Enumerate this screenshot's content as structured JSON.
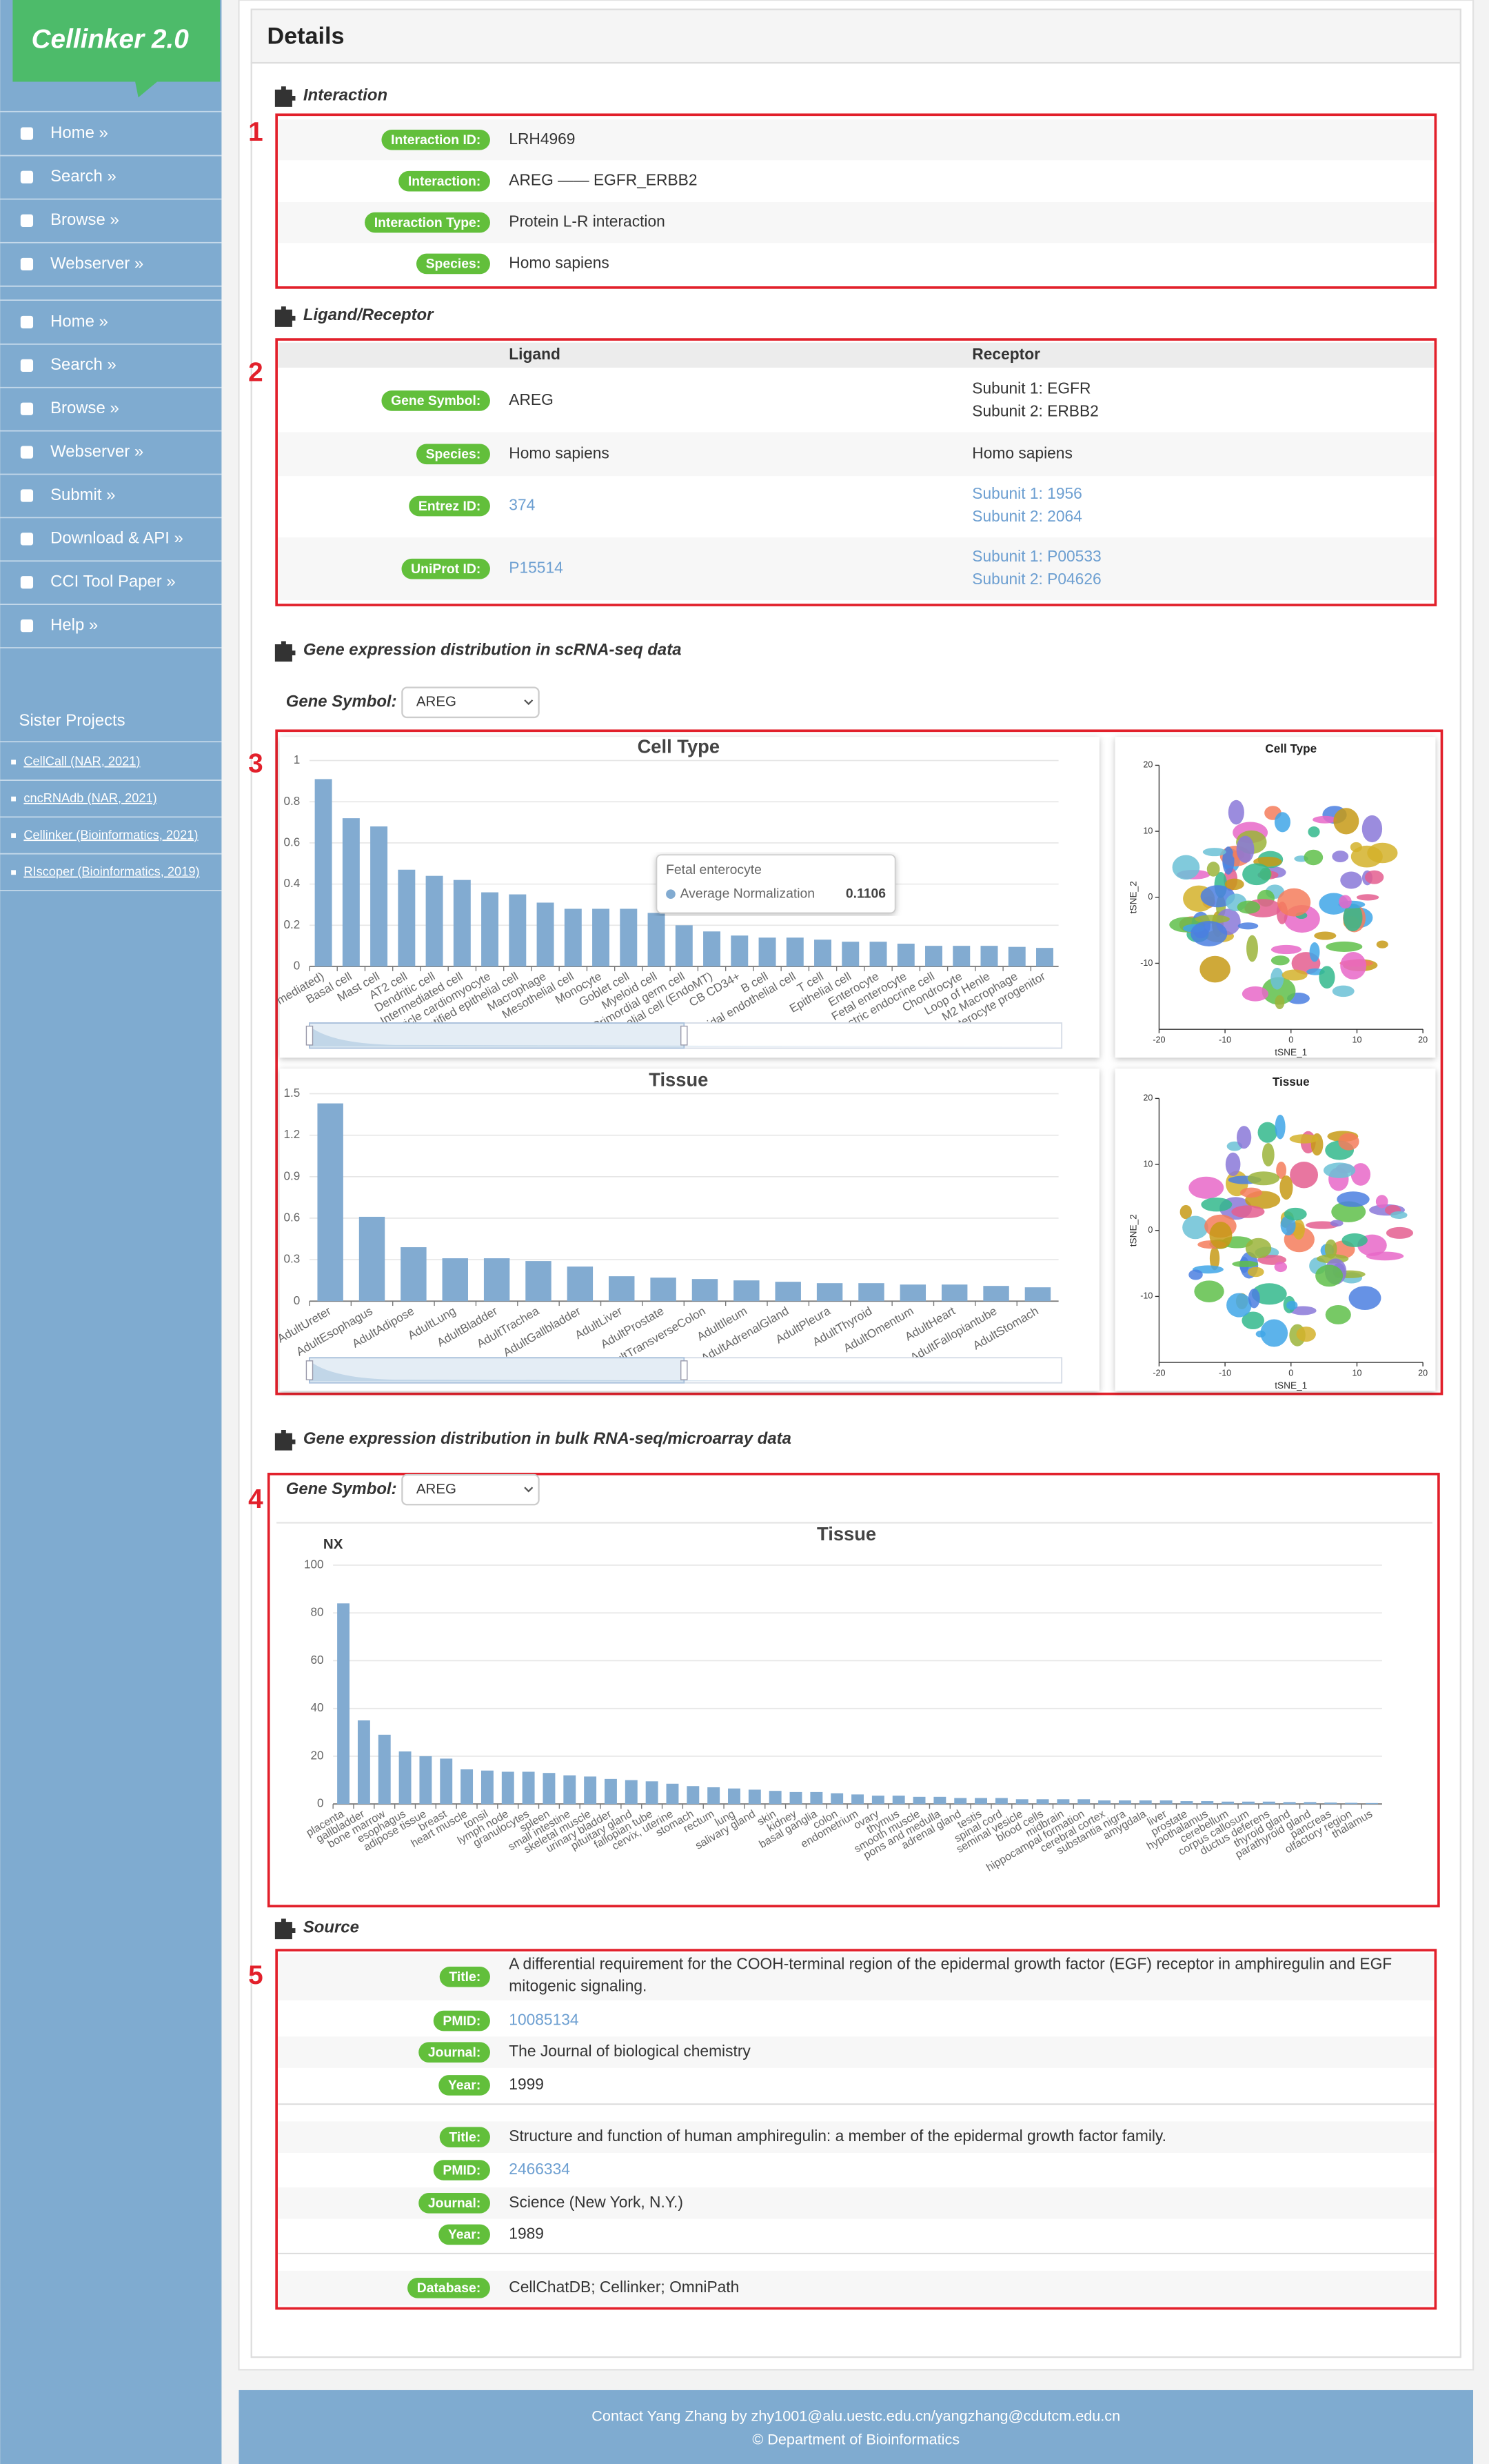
{
  "logo": "Cellinker 2.0",
  "nav": {
    "primary": [
      "Home »",
      "Search »",
      "Browse »",
      "Webserver »"
    ],
    "secondary": [
      "Home »",
      "Search »",
      "Browse »",
      "Webserver »",
      "Submit »",
      "Download & API »",
      "CCI Tool Paper »",
      "Help »"
    ]
  },
  "sister": {
    "title": "Sister Projects",
    "links": [
      "CellCall (NAR, 2021)",
      "cncRNAdb (NAR, 2021)",
      "Cellinker (Bioinformatics, 2021)",
      "RIscoper (Bioinformatics, 2019)"
    ]
  },
  "panel_title": "Details",
  "section_markers": [
    "1",
    "2",
    "3",
    "4",
    "5"
  ],
  "interaction": {
    "heading": "Interaction",
    "rows": [
      {
        "label": "Interaction ID:",
        "value": "LRH4969"
      },
      {
        "label": "Interaction:",
        "value": "AREG —— EGFR_ERBB2"
      },
      {
        "label": "Interaction Type:",
        "value": "Protein L-R interaction"
      },
      {
        "label": "Species:",
        "value": "Homo sapiens"
      }
    ]
  },
  "ligand_receptor": {
    "heading": "Ligand/Receptor",
    "columns": [
      "Ligand",
      "Receptor"
    ],
    "rows": [
      {
        "label": "Gene Symbol:",
        "ligand": [
          "AREG"
        ],
        "receptor": [
          "Subunit 1: EGFR",
          "Subunit 2: ERBB2"
        ],
        "link": false
      },
      {
        "label": "Species:",
        "ligand": [
          "Homo sapiens"
        ],
        "receptor": [
          "Homo sapiens"
        ],
        "link": false
      },
      {
        "label": "Entrez ID:",
        "ligand": [
          "374"
        ],
        "receptor": [
          "Subunit 1: 1956",
          "Subunit 2: 2064"
        ],
        "link": true
      },
      {
        "label": "UniProt ID:",
        "ligand": [
          "P15514"
        ],
        "receptor": [
          "Subunit 1: P00533",
          "Subunit 2: P04626"
        ],
        "link": true
      }
    ]
  },
  "scrna": {
    "heading": "Gene expression distribution in scRNA-seq data",
    "gene_label": "Gene Symbol:",
    "gene": "AREG",
    "tooltip": {
      "title": "Fetal enterocyte",
      "series": "Average Normalization",
      "value": "0.1106"
    }
  },
  "bulk": {
    "heading": "Gene expression distribution in bulk RNA-seq/microarray data",
    "gene_label": "Gene Symbol:",
    "gene": "AREG"
  },
  "source": {
    "heading": "Source",
    "groups": [
      [
        {
          "label": "Title:",
          "value": "A differential requirement for the COOH-terminal region of the epidermal growth factor (EGF) receptor in amphiregulin and EGF mitogenic signaling.",
          "link": false
        },
        {
          "label": "PMID:",
          "value": "10085134",
          "link": true
        },
        {
          "label": "Journal:",
          "value": "The Journal of biological chemistry",
          "link": false
        },
        {
          "label": "Year:",
          "value": "1999",
          "link": false
        }
      ],
      [
        {
          "label": "Title:",
          "value": "Structure and function of human amphiregulin: a member of the epidermal growth factor family.",
          "link": false
        },
        {
          "label": "PMID:",
          "value": "2466334",
          "link": true
        },
        {
          "label": "Journal:",
          "value": "Science (New York, N.Y.)",
          "link": false
        },
        {
          "label": "Year:",
          "value": "1989",
          "link": false
        }
      ],
      [
        {
          "label": "Database:",
          "value": "CellChatDB; Cellinker; OmniPath",
          "link": false
        }
      ]
    ]
  },
  "footer": [
    "Contact Yang Zhang by  zhy1001@alu.uestc.edu.cn/yangzhang@cdutcm.edu.cn",
    "© Department of Bioinformatics"
  ],
  "chart_data": [
    {
      "type": "bar",
      "title": "Cell Type",
      "color": "#82abd1",
      "grid": true,
      "categories": [
        "mediated)",
        "Basal cell",
        "Mast cell",
        "AT2 cell",
        "Dendritic cell",
        "Intermediated cell",
        "Ventricle cardiomyocyte",
        "Stratified epithelial cell",
        "Macrophage",
        "Mesothelial cell",
        "Monocyte",
        "Goblet cell",
        "Myeloid cell",
        "Primordial germ cell",
        "Endothelial cell (EndoMT)",
        "CB CD34+",
        "B cell",
        "Sinusoidal endothelial cell",
        "T cell",
        "Epithelial cell",
        "Enterocyte",
        "Fetal enterocyte",
        "Gastric endocrine cell",
        "Chondrocyte",
        "Loop of Henle",
        "M2 Macrophage",
        "Enterocyte progenitor"
      ],
      "values": [
        0.91,
        0.72,
        0.68,
        0.47,
        0.44,
        0.42,
        0.36,
        0.35,
        0.31,
        0.28,
        0.28,
        0.28,
        0.26,
        0.2,
        0.17,
        0.15,
        0.14,
        0.14,
        0.13,
        0.12,
        0.12,
        0.1106,
        0.1,
        0.1,
        0.1,
        0.095,
        0.09
      ],
      "ylim": [
        0,
        1
      ],
      "yticks": [
        0,
        0.2,
        0.4,
        0.6,
        0.8,
        1
      ]
    },
    {
      "type": "scatter",
      "title": "Cell Type",
      "xlabel": "tSNE_1",
      "ylabel": "tSNE_2",
      "xlim": [
        -20,
        20
      ],
      "xticks": [
        -20,
        -10,
        0,
        10,
        20
      ],
      "ylim": [
        -20,
        20
      ],
      "yticks": [
        -10,
        0,
        10,
        20
      ]
    },
    {
      "type": "bar",
      "title": "Tissue",
      "color": "#82abd1",
      "grid": true,
      "categories": [
        "AdultUreter",
        "AdultEsophagus",
        "AdultAdipose",
        "AdultLung",
        "AdultBladder",
        "AdultTrachea",
        "AdultGallbladder",
        "AdultLiver",
        "AdultProstate",
        "AdultTransverseColon",
        "AdultIleum",
        "AdultAdrenalGland",
        "AdultPleura",
        "AdultThyroid",
        "AdultOmentum",
        "AdultHeart",
        "AdultFallopiantube",
        "AdultStomach"
      ],
      "values": [
        1.43,
        0.61,
        0.39,
        0.31,
        0.31,
        0.29,
        0.25,
        0.18,
        0.17,
        0.16,
        0.15,
        0.14,
        0.13,
        0.13,
        0.12,
        0.12,
        0.11,
        0.1
      ],
      "ylim": [
        0,
        1.5
      ],
      "yticks": [
        0,
        0.3,
        0.6,
        0.9,
        1.2,
        1.5
      ]
    },
    {
      "type": "scatter",
      "title": "Tissue",
      "xlabel": "tSNE_1",
      "ylabel": "tSNE_2",
      "xlim": [
        -20,
        20
      ],
      "xticks": [
        -20,
        -10,
        0,
        10,
        20
      ],
      "ylim": [
        -20,
        20
      ],
      "yticks": [
        -10,
        0,
        10,
        20
      ]
    },
    {
      "type": "bar",
      "title": "Tissue",
      "ylabel": "NX",
      "color": "#82abd1",
      "grid": true,
      "categories": [
        "placenta",
        "gallbladder",
        "bone marrow",
        "esophagus",
        "adipose tissue",
        "breast",
        "heart muscle",
        "tonsil",
        "lymph node",
        "granulocytes",
        "spleen",
        "small intestine",
        "skeletal muscle",
        "urinary bladder",
        "pituitary gland",
        "fallopian tube",
        "cervix, uterine",
        "stomach",
        "rectum",
        "lung",
        "salivary gland",
        "skin",
        "kidney",
        "basal ganglia",
        "colon",
        "endometrium",
        "ovary",
        "thymus",
        "smooth muscle",
        "pons and medulla",
        "adrenal gland",
        "testis",
        "spinal cord",
        "seminal vesicle",
        "blood cells",
        "midbrain",
        "hippocampal formation",
        "cerebral cortex",
        "substantia nigra",
        "amygdala",
        "liver",
        "prostate",
        "hypothalamus",
        "cerebellum",
        "corpus callosum",
        "ductus deferens",
        "thyroid gland",
        "parathyroid gland",
        "pancreas",
        "olfactory region",
        "thalamus"
      ],
      "values": [
        84,
        35,
        29,
        22,
        20,
        19,
        14.5,
        14,
        13.5,
        13.5,
        13,
        12,
        11.5,
        10.5,
        10,
        9.5,
        8.5,
        7.5,
        7,
        6.5,
        6,
        5.5,
        5,
        5,
        4.5,
        4,
        3.5,
        3.5,
        3,
        3,
        2.5,
        2.5,
        2.5,
        2,
        2,
        2,
        2,
        1.5,
        1.5,
        1.5,
        1.5,
        1.2,
        1.2,
        1,
        1,
        1,
        0.8,
        0.8,
        0.6,
        0.5,
        0.4
      ],
      "ylim": [
        0,
        100
      ],
      "yticks": [
        0,
        20,
        40,
        60,
        80,
        100
      ]
    }
  ]
}
